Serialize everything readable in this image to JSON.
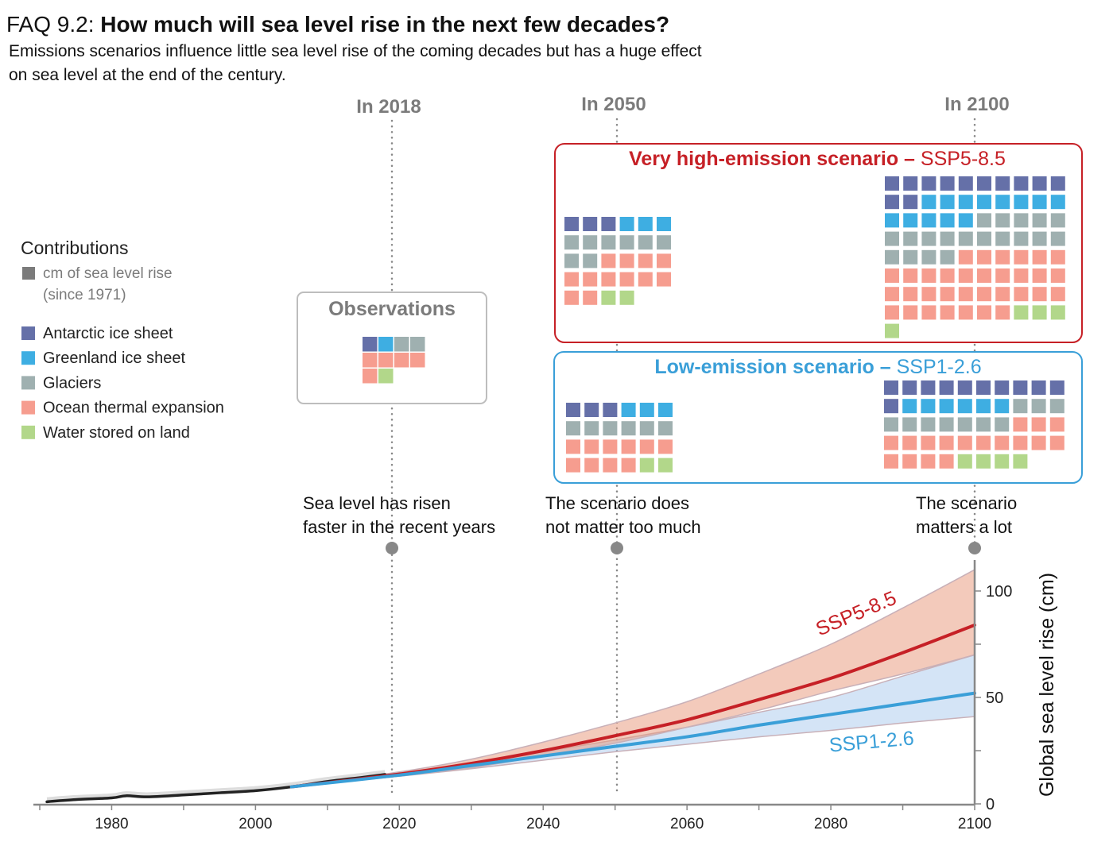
{
  "header": {
    "title_prefix": "FAQ 9.2: ",
    "title": "How much will sea level rise in the next few decades?",
    "subtitle_line1": "Emissions scenarios influence little sea level rise of the coming decades but has a huge effect",
    "subtitle_line2": "on sea level at the end of the century."
  },
  "time_markers": [
    "In 2018",
    "In 2050",
    "In 2100"
  ],
  "legend": {
    "title": "Contributions",
    "unit_line1": "cm of sea level rise",
    "unit_line2": "(since 1971)",
    "unit_color": "#7b7b7b",
    "items": [
      {
        "label": "Antarctic ice sheet",
        "color": "#6570a8"
      },
      {
        "label": "Greenland ice sheet",
        "color": "#3eaee2"
      },
      {
        "label": "Glaciers",
        "color": "#9fb0b0"
      },
      {
        "label": "Ocean thermal expansion",
        "color": "#f69d8f"
      },
      {
        "label": "Water stored on land",
        "color": "#b2d78a"
      }
    ]
  },
  "observations": {
    "title": "Observations",
    "counts": [
      1,
      1,
      2,
      5,
      1
    ]
  },
  "scenarios": {
    "high": {
      "title_bold": "Very high-emission scenario – ",
      "title_code": "SSP5-8.5",
      "color": "#c62026",
      "counts_2050": [
        3,
        3,
        8,
        12,
        2
      ],
      "counts_2100": [
        12,
        13,
        19,
        33,
        4
      ]
    },
    "low": {
      "title_bold": "Low-emission scenario – ",
      "title_code": "SSP1-2.6",
      "color": "#3a9fd8",
      "counts_2050": [
        3,
        3,
        6,
        10,
        2
      ],
      "counts_2100": [
        11,
        6,
        10,
        17,
        4
      ]
    }
  },
  "annotations": [
    {
      "line1": "Sea level has risen",
      "line2": "faster in the recent years"
    },
    {
      "line1": "The scenario does",
      "line2": "not matter too much"
    },
    {
      "line1": "The scenario",
      "line2": "matters a lot"
    }
  ],
  "chart_data": {
    "type": "line",
    "ylabel": "Global sea level rise (cm)",
    "xlim": [
      1970,
      2100
    ],
    "ylim": [
      0,
      110
    ],
    "x_ticks": [
      "1980",
      "2000",
      "2020",
      "2040",
      "2060",
      "2080",
      "2100"
    ],
    "y_ticks": [
      "0",
      "50",
      "100"
    ],
    "grid": false,
    "series": [
      {
        "name": "",
        "color": "#222222",
        "x": [
          1971,
          1975,
          1980,
          1982,
          1985,
          1990,
          1995,
          2000,
          2005,
          2010,
          2015,
          2018
        ],
        "y": [
          1,
          2,
          2.8,
          3.8,
          3.3,
          4.2,
          5.2,
          6.2,
          8,
          10.5,
          12.5,
          13.8
        ]
      },
      {
        "name": "SSP5-8.5",
        "color": "#c62026",
        "x": [
          2005,
          2020,
          2030,
          2040,
          2050,
          2060,
          2070,
          2080,
          2090,
          2100
        ],
        "y": [
          8,
          14,
          19,
          25,
          32,
          39.5,
          49,
          59,
          71,
          84
        ],
        "upper": [
          8,
          15,
          21,
          29,
          38,
          48,
          61,
          75,
          92,
          110
        ],
        "lower": [
          8,
          13,
          17,
          22.5,
          28.5,
          36,
          44,
          53,
          61,
          70
        ]
      },
      {
        "name": "SSP1-2.6",
        "color": "#3a9fd8",
        "x": [
          2005,
          2020,
          2030,
          2040,
          2050,
          2060,
          2070,
          2080,
          2090,
          2100
        ],
        "y": [
          8,
          13.5,
          18,
          22.5,
          27,
          31.5,
          37,
          42,
          47,
          52
        ],
        "upper": [
          8,
          14,
          19.5,
          24.5,
          30,
          36,
          43,
          50,
          60,
          70
        ],
        "lower": [
          8,
          13,
          16.5,
          20.5,
          24.5,
          28,
          31.5,
          34.5,
          38,
          41
        ]
      }
    ]
  }
}
